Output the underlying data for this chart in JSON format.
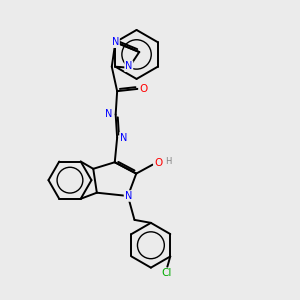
{
  "background_color": "#ebebeb",
  "atom_colors": {
    "N": "#0000ff",
    "O": "#ff0000",
    "Cl": "#00aa00",
    "H": "#808080"
  },
  "bond_color": "#000000",
  "bond_width": 1.4,
  "figsize": [
    3.0,
    3.0
  ],
  "dpi": 100
}
